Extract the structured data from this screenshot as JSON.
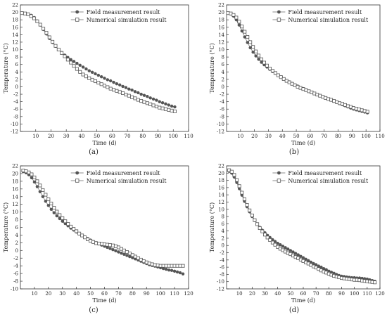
{
  "chart_data": [
    {
      "panel": "a",
      "caption": "(a)",
      "type": "scatter",
      "xlabel": "Time (d)",
      "ylabel": "Temperature (°C)",
      "xlim": [
        0,
        110
      ],
      "ylim": [
        -12,
        22
      ],
      "xticks": [
        10,
        20,
        30,
        40,
        50,
        60,
        70,
        80,
        90,
        100,
        110
      ],
      "yticks": [
        -12,
        -10,
        -8,
        -6,
        -4,
        -2,
        0,
        2,
        4,
        6,
        8,
        10,
        12,
        14,
        16,
        18,
        20,
        22
      ],
      "legend_position": "top-right",
      "series": [
        {
          "name": "Field measurement result",
          "marker": "filled-circle",
          "color": "#555555",
          "x": [
            1,
            3,
            5,
            7,
            9,
            11,
            13,
            15,
            17,
            19,
            21,
            23,
            25,
            27,
            29,
            31,
            33,
            35,
            37,
            39,
            41,
            43,
            45,
            47,
            49,
            51,
            53,
            55,
            57,
            59,
            61,
            63,
            65,
            67,
            69,
            71,
            73,
            75,
            77,
            79,
            81,
            83,
            85,
            87,
            89,
            91,
            93,
            95,
            97,
            99,
            101
          ],
          "y": [
            19.8,
            19.7,
            19.5,
            19.2,
            18.6,
            17.7,
            16.6,
            15.4,
            14.2,
            13.0,
            11.9,
            10.9,
            10.0,
            9.2,
            8.5,
            7.9,
            7.3,
            6.8,
            6.3,
            5.8,
            5.3,
            4.8,
            4.3,
            3.9,
            3.5,
            3.1,
            2.7,
            2.3,
            1.9,
            1.6,
            1.2,
            0.8,
            0.5,
            0.1,
            -0.2,
            -0.6,
            -0.9,
            -1.3,
            -1.6,
            -2.0,
            -2.3,
            -2.6,
            -3.0,
            -3.3,
            -3.6,
            -4.0,
            -4.3,
            -4.6,
            -4.9,
            -5.2,
            -5.4
          ]
        },
        {
          "name": "Numerical simulation result",
          "marker": "open-square",
          "color": "#555555",
          "x": [
            1,
            3,
            5,
            7,
            9,
            11,
            13,
            15,
            17,
            19,
            21,
            23,
            25,
            27,
            29,
            31,
            33,
            35,
            37,
            39,
            41,
            43,
            45,
            47,
            49,
            51,
            53,
            55,
            57,
            59,
            61,
            63,
            65,
            67,
            69,
            71,
            73,
            75,
            77,
            79,
            81,
            83,
            85,
            87,
            89,
            91,
            93,
            95,
            97,
            99,
            101
          ],
          "y": [
            19.8,
            19.7,
            19.5,
            19.0,
            18.4,
            17.6,
            16.7,
            15.6,
            14.5,
            13.3,
            12.1,
            11.0,
            10.0,
            9.1,
            8.2,
            7.3,
            6.5,
            5.6,
            4.8,
            4.0,
            3.3,
            2.8,
            2.3,
            1.9,
            1.5,
            1.1,
            0.7,
            0.3,
            -0.1,
            -0.5,
            -0.8,
            -1.1,
            -1.4,
            -1.7,
            -2.1,
            -2.4,
            -2.8,
            -3.1,
            -3.5,
            -3.8,
            -4.1,
            -4.4,
            -4.7,
            -5.0,
            -5.3,
            -5.6,
            -5.8,
            -6.0,
            -6.2,
            -6.4,
            -6.6
          ]
        }
      ]
    },
    {
      "panel": "b",
      "caption": "(b)",
      "type": "scatter",
      "xlabel": "Time (d)",
      "ylabel": "Temperature (°C)",
      "xlim": [
        0,
        110
      ],
      "ylim": [
        -12,
        22
      ],
      "xticks": [
        10,
        20,
        30,
        40,
        50,
        60,
        70,
        80,
        90,
        100,
        110
      ],
      "yticks": [
        -12,
        -10,
        -8,
        -6,
        -4,
        -2,
        0,
        2,
        4,
        6,
        8,
        10,
        12,
        14,
        16,
        18,
        20,
        22
      ],
      "legend_position": "top-right",
      "series": [
        {
          "name": "Field measurement result",
          "marker": "filled-circle",
          "color": "#555555",
          "x": [
            1,
            3,
            5,
            7,
            9,
            11,
            13,
            15,
            17,
            19,
            21,
            23,
            25,
            27,
            29,
            31,
            33,
            35,
            37,
            39,
            41,
            43,
            45,
            47,
            49,
            51,
            53,
            55,
            57,
            59,
            61,
            63,
            65,
            67,
            69,
            71,
            73,
            75,
            77,
            79,
            81,
            83,
            85,
            87,
            89,
            91,
            93,
            95,
            97,
            99,
            101
          ],
          "y": [
            19.8,
            19.6,
            19.0,
            18.0,
            16.6,
            15.0,
            13.4,
            11.9,
            10.5,
            9.3,
            8.3,
            7.4,
            6.6,
            5.9,
            5.3,
            4.7,
            4.1,
            3.6,
            3.1,
            2.6,
            2.1,
            1.7,
            1.3,
            0.9,
            0.5,
            0.2,
            -0.2,
            -0.5,
            -0.8,
            -1.2,
            -1.5,
            -1.8,
            -2.1,
            -2.4,
            -2.7,
            -3.0,
            -3.3,
            -3.6,
            -3.9,
            -4.2,
            -4.5,
            -4.8,
            -5.1,
            -5.4,
            -5.7,
            -6.0,
            -6.2,
            -6.4,
            -6.6,
            -6.8,
            -7.0
          ]
        },
        {
          "name": "Numerical simulation result",
          "marker": "open-square",
          "color": "#555555",
          "x": [
            1,
            3,
            5,
            7,
            9,
            11,
            13,
            15,
            17,
            19,
            21,
            23,
            25,
            27,
            29,
            31,
            33,
            35,
            37,
            39,
            41,
            43,
            45,
            47,
            49,
            51,
            53,
            55,
            57,
            59,
            61,
            63,
            65,
            67,
            69,
            71,
            73,
            75,
            77,
            79,
            81,
            83,
            85,
            87,
            89,
            91,
            93,
            95,
            97,
            99,
            101
          ],
          "y": [
            19.8,
            19.7,
            19.3,
            18.6,
            17.5,
            16.2,
            14.8,
            13.4,
            12.0,
            10.7,
            9.5,
            8.4,
            7.4,
            6.5,
            5.7,
            4.9,
            4.3,
            3.7,
            3.1,
            2.6,
            2.1,
            1.6,
            1.2,
            0.8,
            0.4,
            0.0,
            -0.3,
            -0.6,
            -0.9,
            -1.2,
            -1.5,
            -1.8,
            -2.1,
            -2.4,
            -2.7,
            -3.0,
            -3.3,
            -3.5,
            -3.8,
            -4.1,
            -4.4,
            -4.6,
            -4.9,
            -5.2,
            -5.4,
            -5.7,
            -5.9,
            -6.1,
            -6.3,
            -6.5,
            -6.7
          ]
        }
      ]
    },
    {
      "panel": "c",
      "caption": "(c)",
      "type": "scatter",
      "xlabel": "Time (d)",
      "ylabel": "Temperature (°C)",
      "xlim": [
        0,
        120
      ],
      "ylim": [
        -10,
        22
      ],
      "xticks": [
        10,
        20,
        30,
        40,
        50,
        60,
        70,
        80,
        90,
        100,
        110,
        120
      ],
      "yticks": [
        -10,
        -8,
        -6,
        -4,
        -2,
        0,
        2,
        4,
        6,
        8,
        10,
        12,
        14,
        16,
        18,
        20,
        22
      ],
      "legend_position": "top-right",
      "series": [
        {
          "name": "Field measurement result",
          "marker": "filled-circle",
          "color": "#555555",
          "x": [
            2,
            4,
            6,
            8,
            10,
            12,
            14,
            16,
            18,
            20,
            22,
            24,
            26,
            28,
            30,
            32,
            34,
            36,
            38,
            40,
            42,
            44,
            46,
            48,
            50,
            52,
            54,
            56,
            58,
            60,
            62,
            64,
            66,
            68,
            70,
            72,
            74,
            76,
            78,
            80,
            82,
            84,
            86,
            88,
            90,
            92,
            94,
            96,
            98,
            100,
            102,
            104,
            106,
            108,
            110,
            112,
            114,
            116
          ],
          "y": [
            20.5,
            20.2,
            19.7,
            18.9,
            17.8,
            16.6,
            15.3,
            14.0,
            12.8,
            11.7,
            10.7,
            9.8,
            9.0,
            8.3,
            7.6,
            7.0,
            6.4,
            5.8,
            5.3,
            4.8,
            4.3,
            3.9,
            3.5,
            3.1,
            2.7,
            2.3,
            2.0,
            1.7,
            1.4,
            1.1,
            0.8,
            0.5,
            0.2,
            -0.1,
            -0.4,
            -0.7,
            -1.0,
            -1.3,
            -1.6,
            -1.9,
            -2.2,
            -2.5,
            -2.8,
            -3.1,
            -3.4,
            -3.7,
            -3.9,
            -4.1,
            -4.3,
            -4.5,
            -4.7,
            -4.9,
            -5.1,
            -5.2,
            -5.4,
            -5.6,
            -5.8,
            -6.1
          ]
        },
        {
          "name": "Numerical simulation result",
          "marker": "open-square",
          "color": "#555555",
          "x": [
            2,
            4,
            6,
            8,
            10,
            12,
            14,
            16,
            18,
            20,
            22,
            24,
            26,
            28,
            30,
            32,
            34,
            36,
            38,
            40,
            42,
            44,
            46,
            48,
            50,
            52,
            54,
            56,
            58,
            60,
            62,
            64,
            66,
            68,
            70,
            72,
            74,
            76,
            78,
            80,
            82,
            84,
            86,
            88,
            90,
            92,
            94,
            96,
            98,
            100,
            102,
            104,
            106,
            108,
            110,
            112,
            114,
            116
          ],
          "y": [
            20.8,
            20.6,
            20.3,
            19.8,
            19.0,
            18.0,
            16.9,
            15.7,
            14.5,
            13.3,
            12.2,
            11.1,
            10.1,
            9.2,
            8.4,
            7.6,
            6.9,
            6.2,
            5.6,
            5.0,
            4.4,
            3.9,
            3.4,
            2.9,
            2.5,
            2.2,
            1.9,
            1.8,
            1.7,
            1.6,
            1.5,
            1.4,
            1.3,
            1.1,
            0.8,
            0.4,
            0.0,
            -0.4,
            -0.8,
            -1.2,
            -1.6,
            -2.0,
            -2.4,
            -2.8,
            -3.1,
            -3.4,
            -3.6,
            -3.8,
            -3.9,
            -4.0,
            -4.0,
            -4.0,
            -4.0,
            -4.0,
            -4.0,
            -4.0,
            -4.0,
            -4.0
          ]
        }
      ]
    },
    {
      "panel": "d",
      "caption": "(d)",
      "type": "scatter",
      "xlabel": "Time (d)",
      "ylabel": "Temperature (°C)",
      "xlim": [
        0,
        120
      ],
      "ylim": [
        -12,
        22
      ],
      "xticks": [
        10,
        20,
        30,
        40,
        50,
        60,
        70,
        80,
        90,
        100,
        110,
        120
      ],
      "yticks": [
        -12,
        -10,
        -8,
        -6,
        -4,
        -2,
        0,
        2,
        4,
        6,
        8,
        10,
        12,
        14,
        16,
        18,
        20,
        22
      ],
      "legend_position": "top-right",
      "series": [
        {
          "name": "Field measurement result",
          "marker": "filled-circle",
          "color": "#555555",
          "x": [
            2,
            4,
            6,
            8,
            10,
            12,
            14,
            16,
            18,
            20,
            22,
            24,
            26,
            28,
            30,
            32,
            34,
            36,
            38,
            40,
            42,
            44,
            46,
            48,
            50,
            52,
            54,
            56,
            58,
            60,
            62,
            64,
            66,
            68,
            70,
            72,
            74,
            76,
            78,
            80,
            82,
            84,
            86,
            88,
            90,
            92,
            94,
            96,
            98,
            100,
            102,
            104,
            106,
            108,
            110,
            112,
            114,
            116
          ],
          "y": [
            20.5,
            20.0,
            18.9,
            17.4,
            15.7,
            13.9,
            12.2,
            10.7,
            9.3,
            8.0,
            6.9,
            5.9,
            5.0,
            4.2,
            3.5,
            2.8,
            2.2,
            1.6,
            1.1,
            0.6,
            0.2,
            -0.2,
            -0.6,
            -1.0,
            -1.4,
            -1.8,
            -2.2,
            -2.6,
            -3.0,
            -3.4,
            -3.8,
            -4.2,
            -4.6,
            -5.0,
            -5.3,
            -5.7,
            -6.0,
            -6.4,
            -6.7,
            -7.1,
            -7.4,
            -7.7,
            -8.0,
            -8.3,
            -8.5,
            -8.6,
            -8.7,
            -8.8,
            -8.9,
            -8.9,
            -9.0,
            -9.0,
            -9.1,
            -9.2,
            -9.3,
            -9.5,
            -9.7,
            -9.9
          ]
        },
        {
          "name": "Numerical simulation result",
          "marker": "open-square",
          "color": "#555555",
          "x": [
            2,
            4,
            6,
            8,
            10,
            12,
            14,
            16,
            18,
            20,
            22,
            24,
            26,
            28,
            30,
            32,
            34,
            36,
            38,
            40,
            42,
            44,
            46,
            48,
            50,
            52,
            54,
            56,
            58,
            60,
            62,
            64,
            66,
            68,
            70,
            72,
            74,
            76,
            78,
            80,
            82,
            84,
            86,
            88,
            90,
            92,
            94,
            96,
            98,
            100,
            102,
            104,
            106,
            108,
            110,
            112,
            114,
            116
          ],
          "y": [
            20.8,
            20.4,
            19.5,
            18.1,
            16.4,
            14.6,
            12.8,
            11.2,
            9.7,
            8.3,
            7.0,
            5.9,
            4.8,
            3.9,
            3.0,
            2.2,
            1.5,
            0.8,
            0.2,
            -0.4,
            -0.9,
            -1.3,
            -1.7,
            -2.1,
            -2.4,
            -2.8,
            -3.2,
            -3.5,
            -3.9,
            -4.3,
            -4.7,
            -5.0,
            -5.4,
            -5.8,
            -6.1,
            -6.5,
            -6.9,
            -7.2,
            -7.5,
            -7.8,
            -8.1,
            -8.4,
            -8.6,
            -8.8,
            -9.0,
            -9.1,
            -9.2,
            -9.3,
            -9.4,
            -9.5,
            -9.5,
            -9.6,
            -9.7,
            -9.8,
            -9.9,
            -10.0,
            -10.1,
            -10.2
          ]
        }
      ]
    }
  ]
}
